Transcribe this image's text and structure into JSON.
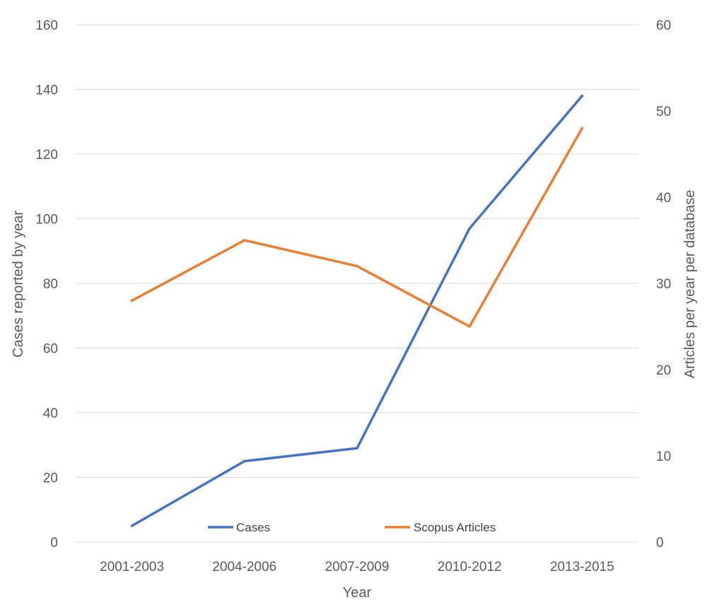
{
  "chart_data": {
    "type": "line",
    "categories": [
      "2001-2003",
      "2004-2006",
      "2007-2009",
      "2010-2012",
      "2013-2015"
    ],
    "xlabel": "Year",
    "ylabel": "Cases reported by year",
    "y2label": "Articles per year per database",
    "ylim": [
      0,
      160
    ],
    "yticks": [
      "0",
      "20",
      "40",
      "60",
      "80",
      "100",
      "120",
      "140",
      "160"
    ],
    "y2lim": [
      0,
      60
    ],
    "y2ticks": [
      "0",
      "10",
      "20",
      "30",
      "40",
      "50",
      "60"
    ],
    "grid": true,
    "legend_position": "bottom",
    "series": [
      {
        "name": "Cases",
        "axis": "left",
        "color": "#4472C4",
        "values": [
          5,
          25,
          29,
          97,
          138
        ]
      },
      {
        "name": "Scopus Articles",
        "axis": "right",
        "color": "#ED7D31",
        "values": [
          28,
          35,
          32,
          25,
          48
        ]
      }
    ]
  }
}
